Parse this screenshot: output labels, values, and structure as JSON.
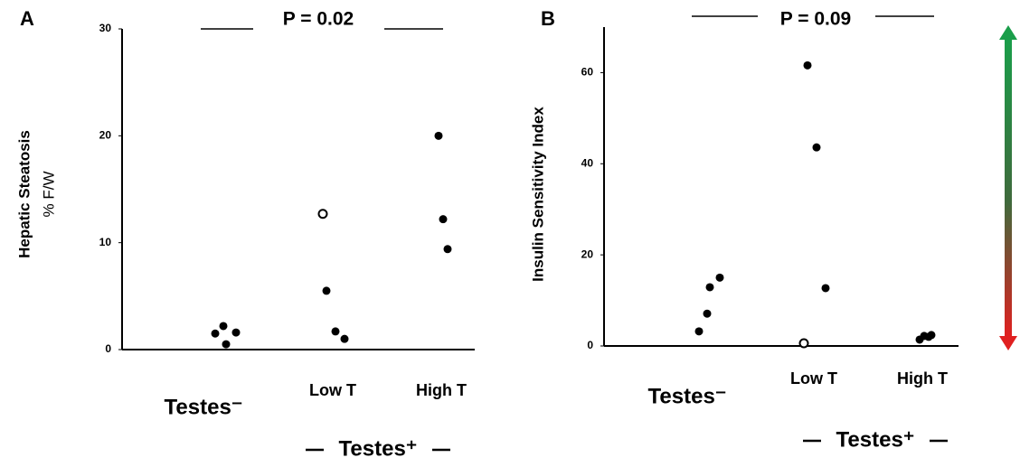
{
  "chart_data": [
    {
      "type": "scatter",
      "label": "A",
      "annotation": "P = 0.02",
      "ylabel": "Hepatic Steatosis",
      "ylabel_unit": "% F/W",
      "categories": [
        "Testes⁻",
        "Low T",
        "High T"
      ],
      "group_label": "Testes⁺",
      "ylim": [
        0,
        30
      ],
      "yticks": [
        0,
        10,
        20,
        30
      ],
      "series": [
        {
          "marker": "filled",
          "color": "#000000",
          "x": [
            "Testes⁻",
            "Testes⁻",
            "Testes⁻",
            "Testes⁻",
            "Low T",
            "Low T",
            "Low T",
            "High T",
            "High T",
            "High T"
          ],
          "values": [
            1.5,
            2.2,
            1.6,
            0.5,
            5.5,
            1.7,
            1.0,
            20.0,
            12.2,
            9.4
          ]
        },
        {
          "marker": "open",
          "color": "#000000",
          "x": [
            "Low T"
          ],
          "values": [
            12.7
          ]
        }
      ]
    },
    {
      "type": "scatter",
      "label": "B",
      "annotation": "P = 0.09",
      "ylabel": "Insulin Sensitivity Index",
      "categories": [
        "Testes⁻",
        "Low T",
        "High T"
      ],
      "group_label": "Testes⁺",
      "ylim": [
        0,
        70
      ],
      "yticks": [
        0,
        20,
        40,
        60
      ],
      "series": [
        {
          "marker": "filled",
          "color": "#000000",
          "x": [
            "Testes⁻",
            "Testes⁻",
            "Testes⁻",
            "Testes⁻",
            "Low T",
            "Low T",
            "Low T",
            "High T",
            "High T",
            "High T",
            "High T"
          ],
          "values": [
            3.2,
            7.1,
            15.0,
            12.9,
            61.6,
            43.6,
            12.7,
            1.4,
            2.2,
            2.0,
            2.4
          ]
        },
        {
          "marker": "open",
          "color": "#000000",
          "x": [
            "Low T"
          ],
          "values": [
            0.6
          ]
        }
      ]
    }
  ]
}
